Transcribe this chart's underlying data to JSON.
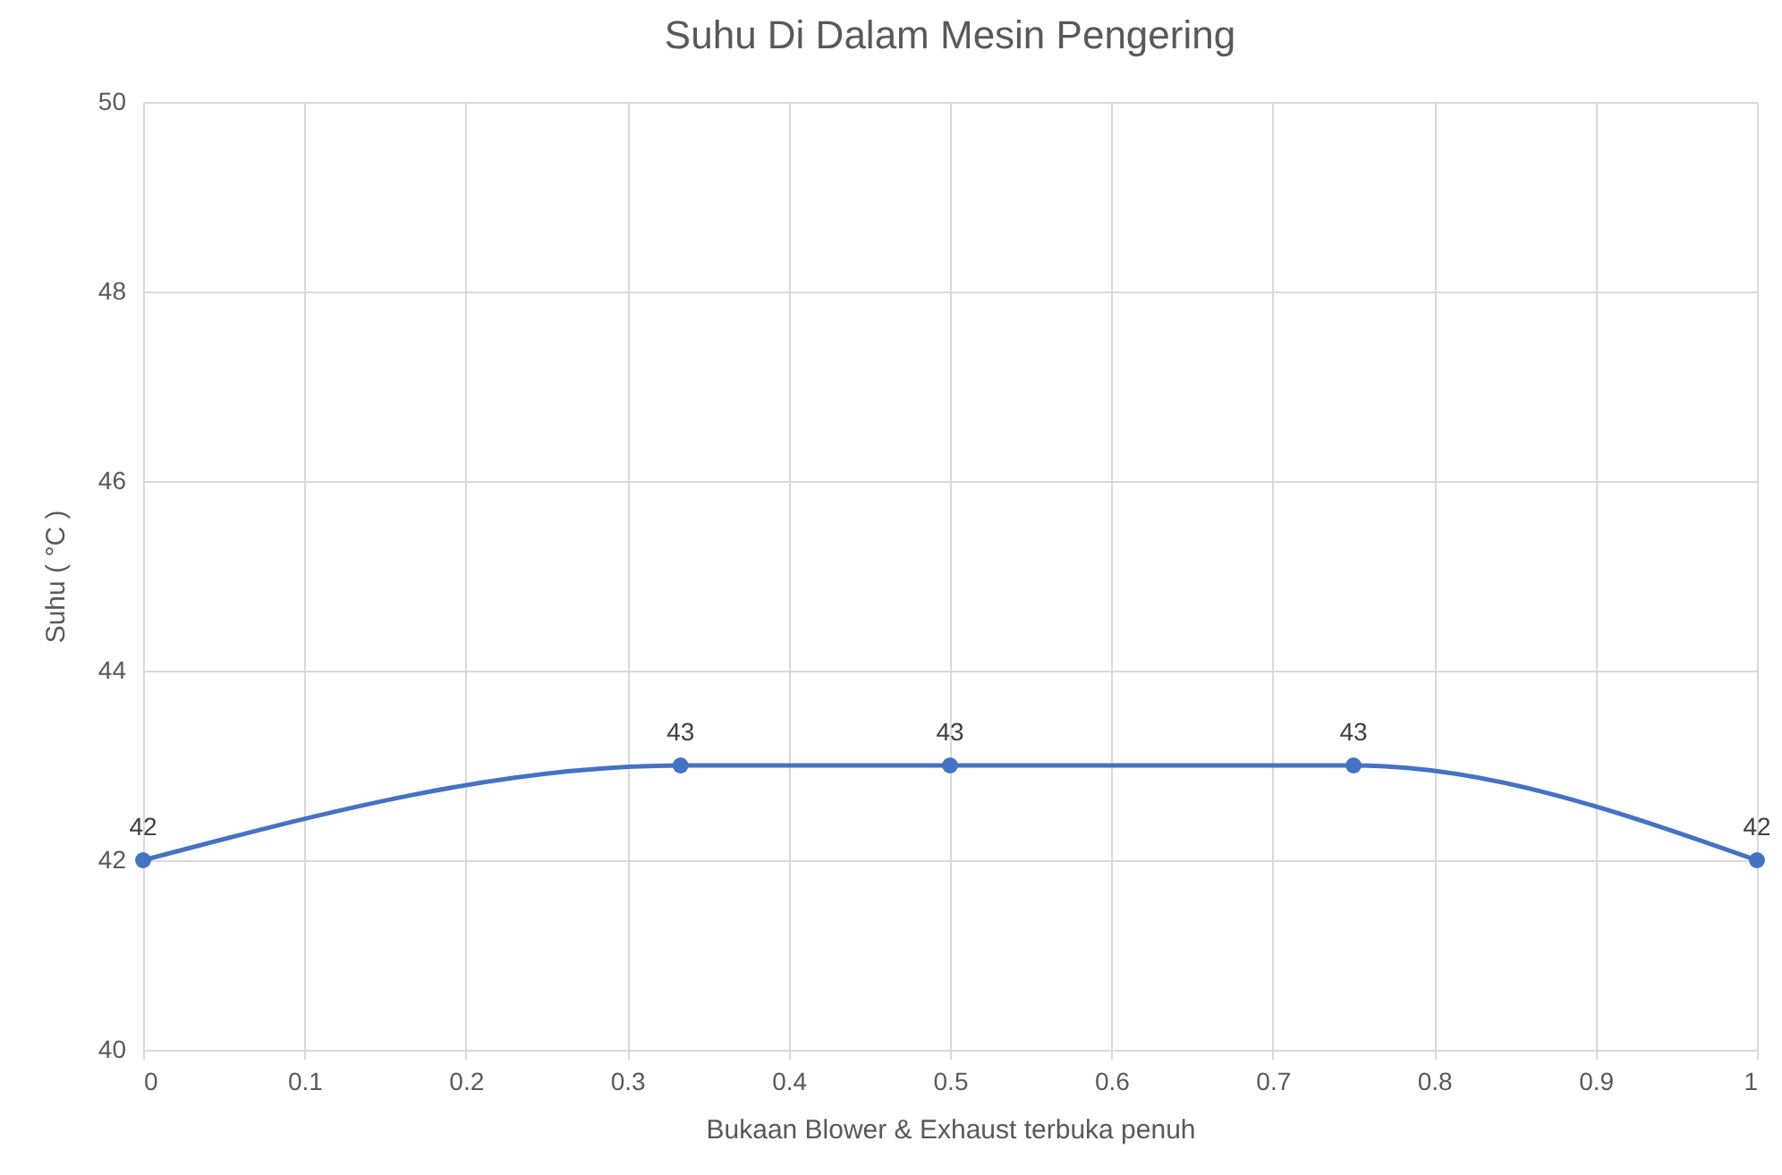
{
  "chart_data": {
    "type": "line",
    "title": "Suhu Di Dalam Mesin Pengering",
    "xlabel": "Bukaan Blower & Exhaust terbuka penuh",
    "ylabel": "Suhu ( °C )",
    "x": [
      0,
      0.333,
      0.5,
      0.75,
      1
    ],
    "series": [
      {
        "color": "#4472c4",
        "values": [
          42,
          43,
          43,
          43,
          42
        ]
      }
    ],
    "xlim": [
      0,
      1
    ],
    "xticks": [
      0,
      0.1,
      0.2,
      0.3,
      0.4,
      0.5,
      0.6,
      0.7,
      0.8,
      0.9,
      1
    ],
    "ylim": [
      40,
      50
    ],
    "yticks": [
      40,
      42,
      44,
      46,
      48,
      50
    ],
    "grid": true,
    "marker": "circle",
    "data_labels": true,
    "legend": false
  }
}
